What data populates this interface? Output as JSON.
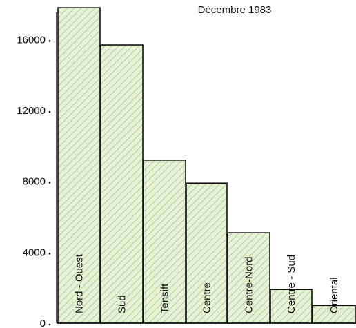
{
  "chart_data": {
    "type": "bar",
    "title": "Décembre 1983",
    "xlabel": "",
    "ylabel": "",
    "categories": [
      "Nord - Ouest",
      "Sud",
      "Tensift",
      "Centre",
      "Centre-Nord",
      "Centre - Sud",
      "Oriental"
    ],
    "values": [
      17800,
      15700,
      9200,
      7900,
      5100,
      1900,
      1000
    ],
    "ylim": [
      0,
      18000
    ],
    "yticks": [
      0,
      4000,
      8000,
      12000,
      16000
    ],
    "ytick_labels": [
      "0",
      "4000",
      "8000",
      "12000",
      "16000"
    ],
    "grid": false,
    "legend": "none",
    "bar_fill": "#e6f2d6",
    "hatch_color": "#b9cf9e"
  }
}
